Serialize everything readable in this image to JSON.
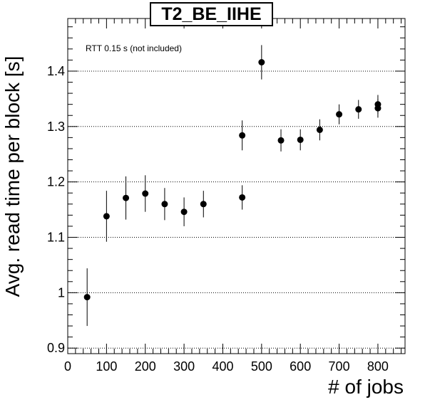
{
  "chart_data": {
    "type": "scatter",
    "title": "T2_BE_IIHE",
    "xlabel": "# of jobs",
    "ylabel": "Avg. read time per block [s]",
    "annotation": "RTT 0.15 s (not included)",
    "xlim": [
      0,
      870
    ],
    "ylim": [
      0.89,
      1.495
    ],
    "x_ticks": [
      0,
      100,
      200,
      300,
      400,
      500,
      600,
      700,
      800
    ],
    "y_ticks": [
      0.9,
      1,
      1.1,
      1.2,
      1.3,
      1.4
    ],
    "y_tick_labels": [
      "0.9",
      "1",
      "1.1",
      "1.2",
      "1.3",
      "1.4"
    ],
    "grid": "horizontal-dotted",
    "series": [
      {
        "points": [
          {
            "x": 50,
            "y": 0.992,
            "err": 0.052
          },
          {
            "x": 100,
            "y": 1.138,
            "err": 0.046
          },
          {
            "x": 150,
            "y": 1.171,
            "err": 0.039
          },
          {
            "x": 200,
            "y": 1.179,
            "err": 0.033
          },
          {
            "x": 250,
            "y": 1.16,
            "err": 0.029
          },
          {
            "x": 300,
            "y": 1.146,
            "err": 0.026
          },
          {
            "x": 350,
            "y": 1.16,
            "err": 0.024
          },
          {
            "x": 450,
            "y": 1.172,
            "err": 0.022
          },
          {
            "x": 450,
            "y": 1.284,
            "err": 0.027
          },
          {
            "x": 500,
            "y": 1.416,
            "err": 0.031
          },
          {
            "x": 550,
            "y": 1.275,
            "err": 0.02
          },
          {
            "x": 600,
            "y": 1.276,
            "err": 0.019
          },
          {
            "x": 650,
            "y": 1.294,
            "err": 0.019
          },
          {
            "x": 700,
            "y": 1.322,
            "err": 0.018
          },
          {
            "x": 750,
            "y": 1.331,
            "err": 0.017
          },
          {
            "x": 800,
            "y": 1.34,
            "err": 0.017
          },
          {
            "x": 800,
            "y": 1.333,
            "err": 0.017
          }
        ]
      }
    ]
  }
}
